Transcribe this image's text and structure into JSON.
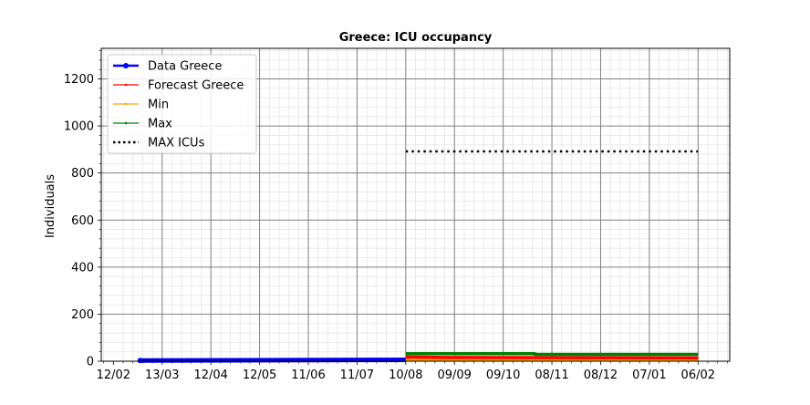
{
  "chart_data": {
    "type": "line",
    "title": "Greece: ICU occupancy",
    "xlabel": "",
    "ylabel": "Individuals",
    "ylim": [
      0,
      1330
    ],
    "yticks": [
      0,
      200,
      400,
      600,
      800,
      1000,
      1200
    ],
    "xticks": [
      "12/02",
      "13/03",
      "12/04",
      "12/05",
      "11/06",
      "11/07",
      "10/08",
      "09/09",
      "09/10",
      "08/11",
      "08/12",
      "07/01",
      "06/02"
    ],
    "x_range_ticks": [
      -0.25,
      12.65
    ],
    "grid": true,
    "legend_position": "upper-left",
    "series": [
      {
        "name": "Data Greece",
        "color": "#0000ff",
        "style": "line-marker",
        "x": [
          0.55,
          6.0
        ],
        "y": [
          3,
          6
        ]
      },
      {
        "name": "Forecast Greece",
        "color": "#ff0000",
        "style": "line-dot",
        "x": [
          6.0,
          6.85,
          12.0
        ],
        "y": [
          18,
          16,
          14
        ]
      },
      {
        "name": "Min",
        "color": "#ffa500",
        "style": "line-dot",
        "x": [
          6.0,
          12.0
        ],
        "y": [
          6,
          6
        ]
      },
      {
        "name": "Max",
        "color": "#008000",
        "style": "line-dot",
        "x": [
          6.0,
          8.65,
          8.65,
          12.0
        ],
        "y": [
          32,
          32,
          29,
          29
        ]
      },
      {
        "name": "MAX ICUs",
        "color": "#000000",
        "style": "dotted",
        "x": [
          6.0,
          12.0
        ],
        "y": [
          892,
          892
        ]
      }
    ]
  }
}
